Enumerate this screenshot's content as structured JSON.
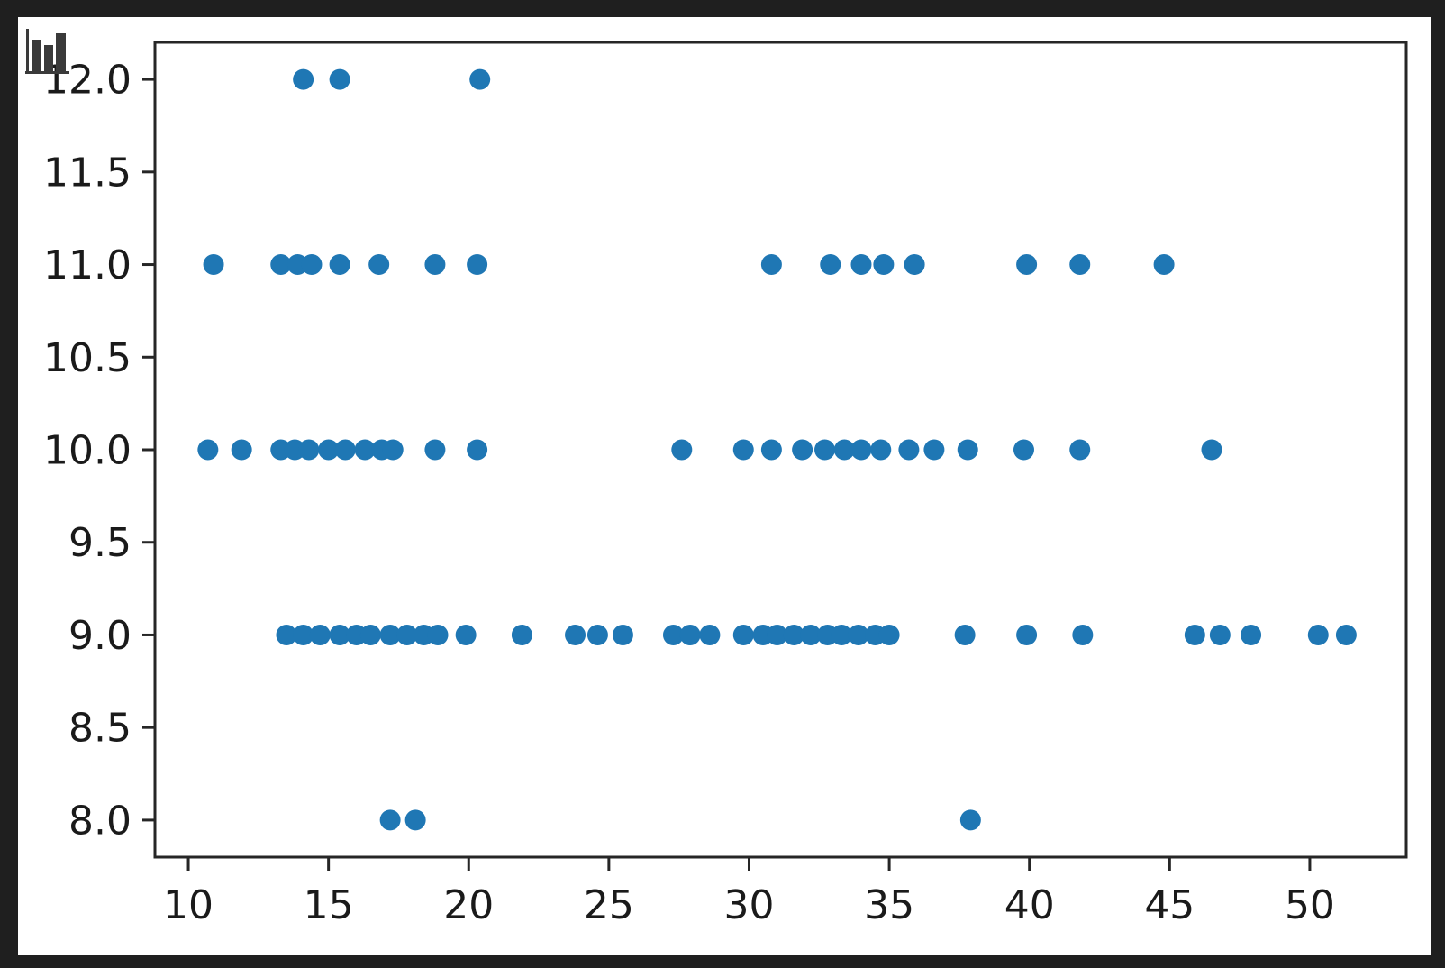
{
  "window": {
    "background_color": "#1f1f1f",
    "figure_background_color": "#ffffff"
  },
  "icon": {
    "name": "bar-chart-icon",
    "color": "#3a3a3a"
  },
  "chart_data": {
    "type": "scatter",
    "title": "",
    "xlabel": "",
    "ylabel": "",
    "grid": false,
    "legend": null,
    "marker_color": "#1f77b4",
    "marker_radius_px": 11.5,
    "axis_color": "#262626",
    "tick_label_color": "#1a1a1a",
    "tick_font_size_px": 44,
    "xlim": [
      8.81,
      53.44
    ],
    "ylim": [
      7.8,
      12.2
    ],
    "xticks": [
      10,
      15,
      20,
      25,
      30,
      35,
      40,
      45,
      50
    ],
    "xtick_labels": [
      "10",
      "15",
      "20",
      "25",
      "30",
      "35",
      "40",
      "45",
      "50"
    ],
    "yticks": [
      8.0,
      8.5,
      9.0,
      9.5,
      10.0,
      10.5,
      11.0,
      11.5,
      12.0
    ],
    "ytick_labels": [
      "8.0",
      "8.5",
      "9.0",
      "9.5",
      "10.0",
      "10.5",
      "11.0",
      "11.5",
      "12.0"
    ],
    "points": [
      [
        14.1,
        12
      ],
      [
        15.4,
        12
      ],
      [
        20.4,
        12
      ],
      [
        10.9,
        11
      ],
      [
        13.3,
        11
      ],
      [
        13.9,
        11
      ],
      [
        14.4,
        11
      ],
      [
        15.4,
        11
      ],
      [
        16.8,
        11
      ],
      [
        18.8,
        11
      ],
      [
        20.3,
        11
      ],
      [
        30.8,
        11
      ],
      [
        32.9,
        11
      ],
      [
        34.0,
        11
      ],
      [
        34.8,
        11
      ],
      [
        35.9,
        11
      ],
      [
        39.9,
        11
      ],
      [
        41.8,
        11
      ],
      [
        44.8,
        11
      ],
      [
        10.7,
        10
      ],
      [
        11.9,
        10
      ],
      [
        13.3,
        10
      ],
      [
        13.8,
        10
      ],
      [
        14.3,
        10
      ],
      [
        15.0,
        10
      ],
      [
        15.6,
        10
      ],
      [
        16.3,
        10
      ],
      [
        16.9,
        10
      ],
      [
        17.3,
        10
      ],
      [
        18.8,
        10
      ],
      [
        20.3,
        10
      ],
      [
        27.6,
        10
      ],
      [
        29.8,
        10
      ],
      [
        30.8,
        10
      ],
      [
        31.9,
        10
      ],
      [
        32.7,
        10
      ],
      [
        33.4,
        10
      ],
      [
        34.0,
        10
      ],
      [
        34.7,
        10
      ],
      [
        35.7,
        10
      ],
      [
        36.6,
        10
      ],
      [
        37.8,
        10
      ],
      [
        39.8,
        10
      ],
      [
        41.8,
        10
      ],
      [
        46.5,
        10
      ],
      [
        13.5,
        9
      ],
      [
        14.1,
        9
      ],
      [
        14.7,
        9
      ],
      [
        15.4,
        9
      ],
      [
        16.0,
        9
      ],
      [
        16.5,
        9
      ],
      [
        17.2,
        9
      ],
      [
        17.8,
        9
      ],
      [
        18.4,
        9
      ],
      [
        18.9,
        9
      ],
      [
        19.9,
        9
      ],
      [
        21.9,
        9
      ],
      [
        23.8,
        9
      ],
      [
        24.6,
        9
      ],
      [
        25.5,
        9
      ],
      [
        27.3,
        9
      ],
      [
        27.9,
        9
      ],
      [
        28.6,
        9
      ],
      [
        29.8,
        9
      ],
      [
        30.5,
        9
      ],
      [
        31.0,
        9
      ],
      [
        31.6,
        9
      ],
      [
        32.2,
        9
      ],
      [
        32.8,
        9
      ],
      [
        33.3,
        9
      ],
      [
        33.9,
        9
      ],
      [
        34.5,
        9
      ],
      [
        35.0,
        9
      ],
      [
        37.7,
        9
      ],
      [
        39.9,
        9
      ],
      [
        41.9,
        9
      ],
      [
        45.9,
        9
      ],
      [
        46.8,
        9
      ],
      [
        47.9,
        9
      ],
      [
        50.3,
        9
      ],
      [
        51.3,
        9
      ],
      [
        17.2,
        8
      ],
      [
        18.1,
        8
      ],
      [
        37.9,
        8
      ]
    ]
  }
}
